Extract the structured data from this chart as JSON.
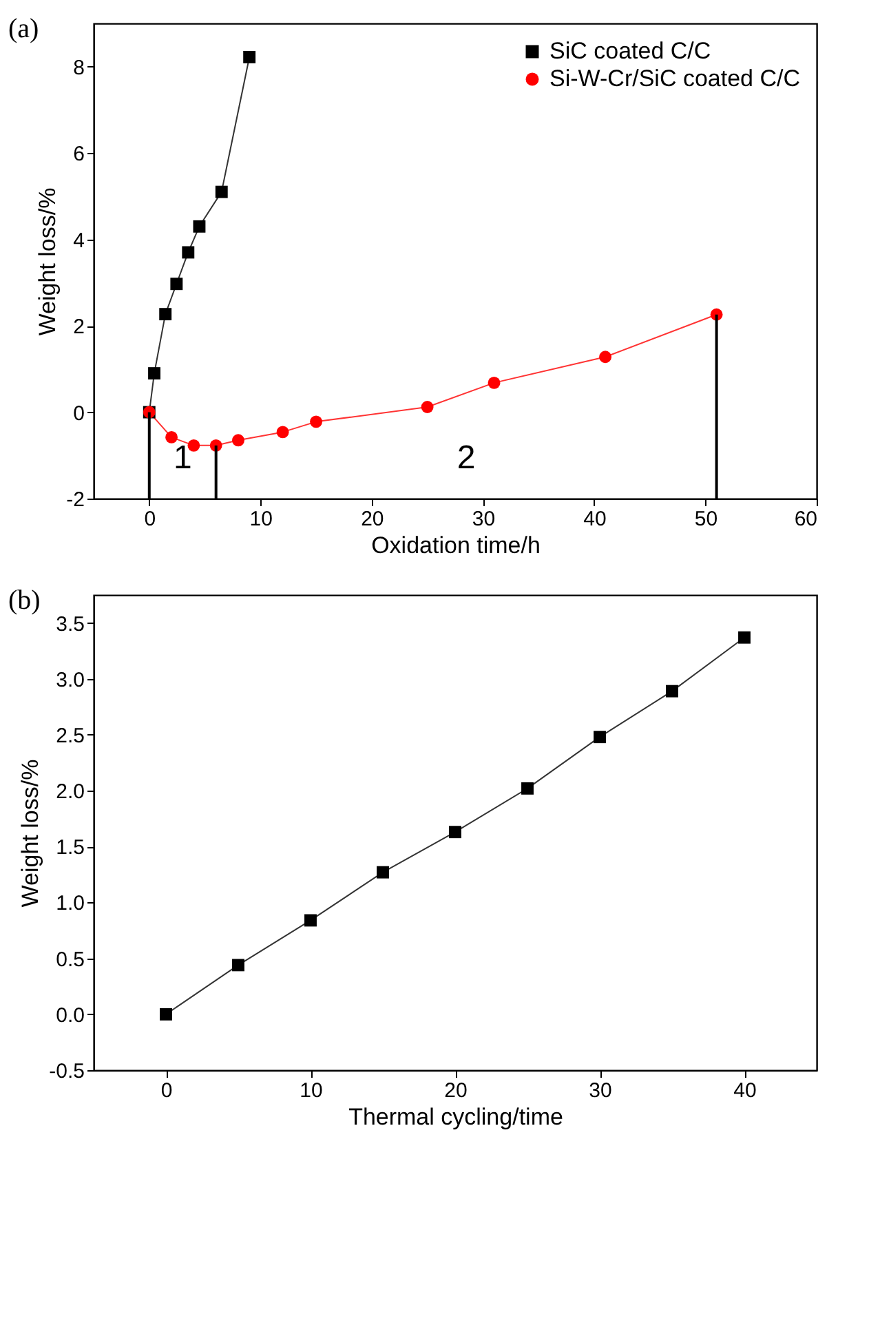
{
  "chart_data": [
    {
      "type": "line",
      "title": "(a)",
      "xlabel": "Oxidation time/h",
      "ylabel": "Weight loss/%",
      "xlim": [
        -5,
        60
      ],
      "ylim": [
        -2,
        9
      ],
      "xticks": [
        0,
        10,
        20,
        30,
        40,
        50,
        60
      ],
      "yticks": [
        -2,
        0,
        2,
        4,
        6,
        8
      ],
      "grid": false,
      "legend": "top right",
      "series": [
        {
          "name": "SiC coated C/C",
          "color": "#000000",
          "marker": "square",
          "x": [
            0,
            0.45,
            1.45,
            2.45,
            3.5,
            4.5,
            6.5,
            9
          ],
          "values": [
            0,
            0.9,
            2.27,
            2.97,
            3.7,
            4.3,
            5.1,
            8.22
          ]
        },
        {
          "name": "Si-W-Cr/SiC coated C/C",
          "color": "#ff0000",
          "marker": "circle",
          "x": [
            0,
            2,
            4,
            6,
            8,
            12,
            15,
            25,
            31,
            41,
            51
          ],
          "values": [
            0,
            -0.58,
            -0.77,
            -0.77,
            -0.65,
            -0.46,
            -0.22,
            0.12,
            0.68,
            1.28,
            2.26
          ]
        }
      ],
      "ref_lines": [
        {
          "axis": "x",
          "value": 0,
          "color": "#000000"
        },
        {
          "axis": "x",
          "value": 6,
          "color": "#000000"
        },
        {
          "axis": "x",
          "value": 51,
          "color": "#000000"
        }
      ],
      "annotations": [
        "1",
        "2"
      ]
    },
    {
      "type": "line",
      "title": "(b)",
      "xlabel": "Thermal cycling/time",
      "ylabel": "Weight loss/%",
      "xlim": [
        -5,
        45
      ],
      "ylim": [
        -0.5,
        3.75
      ],
      "xticks": [
        0,
        10,
        20,
        30,
        40
      ],
      "yticks": [
        {
          "value": -0.5,
          "label": "-0.5"
        },
        {
          "value": 0,
          "label": "0.0"
        },
        {
          "value": 0.5,
          "label": "0.5"
        },
        {
          "value": 1,
          "label": "1.0"
        },
        {
          "value": 1.5,
          "label": "1.5"
        },
        {
          "value": 2,
          "label": "2.0"
        },
        {
          "value": 2.5,
          "label": "2.5"
        },
        {
          "value": 3,
          "label": "3.0"
        },
        {
          "value": 3.5,
          "label": "3.5"
        }
      ],
      "grid": false,
      "legend": false,
      "series": [
        {
          "color": "#000000",
          "marker": "square",
          "x": [
            0,
            5,
            10,
            15,
            20,
            25,
            30,
            35,
            40
          ],
          "values": [
            0,
            0.44,
            0.84,
            1.27,
            1.63,
            2.02,
            2.48,
            2.89,
            3.37
          ]
        }
      ]
    }
  ]
}
